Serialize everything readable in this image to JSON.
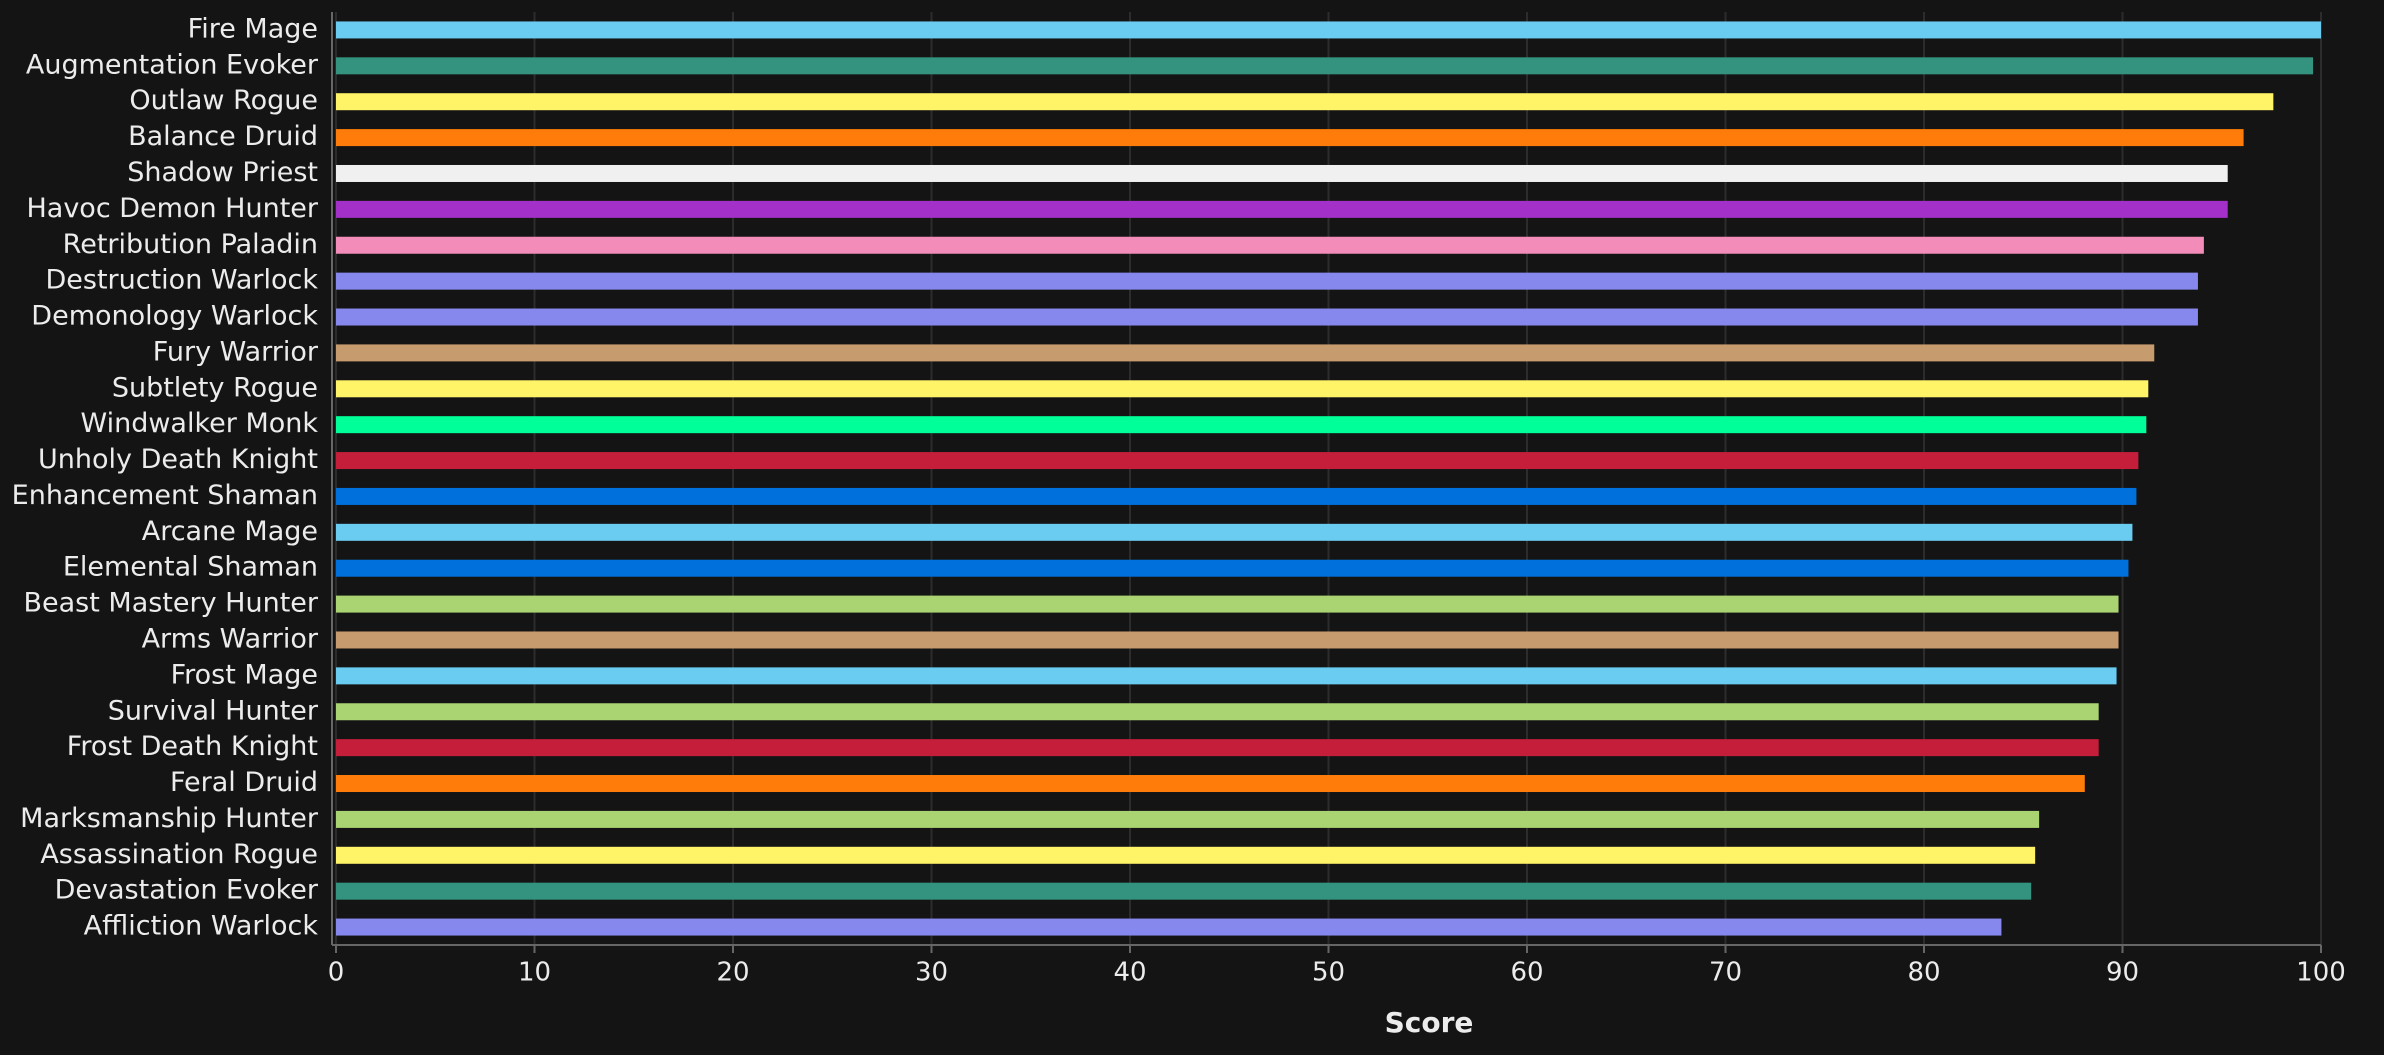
{
  "chart_data": {
    "type": "barh",
    "x_label": "Score",
    "categories": [
      "Fire Mage",
      "Augmentation Evoker",
      "Outlaw Rogue",
      "Balance Druid",
      "Shadow Priest",
      "Havoc Demon Hunter",
      "Retribution Paladin",
      "Destruction Warlock",
      "Demonology Warlock",
      "Fury Warrior",
      "Subtlety Rogue",
      "Windwalker Monk",
      "Unholy Death Knight",
      "Enhancement Shaman",
      "Arcane Mage",
      "Elemental Shaman",
      "Beast Mastery Hunter",
      "Arms Warrior",
      "Frost Mage",
      "Survival Hunter",
      "Frost Death Knight",
      "Feral Druid",
      "Marksmanship Hunter",
      "Assassination Rogue",
      "Devastation Evoker",
      "Affliction Warlock"
    ],
    "values": [
      100,
      99.6,
      97.6,
      96.1,
      95.3,
      95.3,
      94.1,
      93.8,
      93.8,
      91.6,
      91.3,
      91.2,
      90.8,
      90.7,
      90.5,
      90.3,
      89.8,
      89.8,
      89.7,
      88.8,
      88.8,
      88.1,
      85.8,
      85.6,
      85.4,
      83.9
    ],
    "colors": [
      "#69ccf0",
      "#33937f",
      "#fff468",
      "#ff7c0a",
      "#f0f0f0",
      "#a330c9",
      "#f48cba",
      "#8788ee",
      "#8788ee",
      "#c69b6d",
      "#fff468",
      "#00ff98",
      "#c41e3a",
      "#0070dd",
      "#69ccf0",
      "#0070dd",
      "#aad372",
      "#c69b6d",
      "#69ccf0",
      "#aad372",
      "#c41e3a",
      "#ff7c0a",
      "#aad372",
      "#fff468",
      "#33937f",
      "#8788ee"
    ],
    "xlim": [
      0,
      100
    ],
    "xticks": [
      0,
      10,
      20,
      30,
      40,
      50,
      60,
      70,
      80,
      90,
      100
    ],
    "grid": true
  }
}
